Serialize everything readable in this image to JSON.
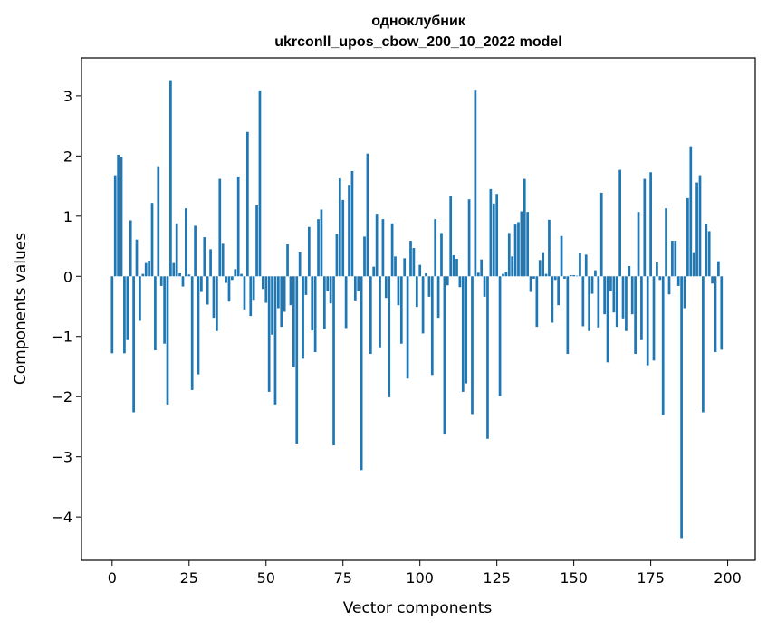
{
  "chart_data": {
    "type": "bar",
    "title_line1": "одноклубник",
    "title_line2": "ukrconll_upos_cbow_200_10_2022 model",
    "xlabel": "Vector components",
    "ylabel": "Components values",
    "xlim": [
      -9.95,
      208.95
    ],
    "ylim": [
      -4.72,
      3.63
    ],
    "xticks": [
      0,
      25,
      50,
      75,
      100,
      125,
      150,
      175,
      200
    ],
    "yticks": [
      -4,
      -3,
      -2,
      -1,
      0,
      1,
      2,
      3
    ],
    "ytick_labels": [
      "−4",
      "−3",
      "−2",
      "−1",
      "0",
      "1",
      "2",
      "3"
    ],
    "bar_color": "#1f77b4",
    "values": [
      -1.28,
      1.68,
      2.02,
      1.98,
      -1.28,
      -1.06,
      0.93,
      -2.26,
      0.61,
      -0.74,
      0.04,
      0.22,
      0.26,
      1.22,
      -1.23,
      1.83,
      -0.16,
      -1.12,
      -2.13,
      3.26,
      0.22,
      0.88,
      0.05,
      -0.17,
      1.13,
      0.03,
      -1.89,
      0.84,
      -1.63,
      -0.26,
      0.65,
      -0.47,
      0.45,
      -0.69,
      -0.91,
      1.62,
      0.54,
      -0.11,
      -0.42,
      -0.06,
      0.12,
      1.66,
      0.04,
      -0.55,
      2.4,
      -0.66,
      -0.39,
      1.18,
      3.09,
      -0.21,
      -0.44,
      -1.92,
      -0.97,
      -2.13,
      -0.53,
      -0.84,
      -0.59,
      0.53,
      -0.48,
      -1.51,
      -2.78,
      0.41,
      -1.37,
      -0.31,
      0.82,
      -0.9,
      -1.26,
      0.95,
      1.11,
      -0.88,
      -0.25,
      -0.45,
      -2.81,
      0.71,
      1.63,
      1.27,
      -0.86,
      1.52,
      1.75,
      -0.4,
      -0.25,
      -3.22,
      0.66,
      2.04,
      -1.29,
      0.16,
      1.04,
      -1.18,
      0.95,
      -0.36,
      -2.01,
      0.88,
      0.33,
      -0.48,
      -1.12,
      0.3,
      -1.7,
      0.59,
      0.47,
      -0.51,
      0.19,
      -0.95,
      0.05,
      -0.34,
      -1.64,
      0.95,
      -0.69,
      0.72,
      -2.63,
      -0.15,
      1.34,
      0.35,
      0.29,
      -0.18,
      -1.92,
      -1.78,
      1.28,
      -2.29,
      3.1,
      0.06,
      0.28,
      -0.34,
      -2.7,
      1.45,
      1.21,
      1.37,
      -1.99,
      0.04,
      0.07,
      0.72,
      0.33,
      0.86,
      0.9,
      1.08,
      1.62,
      1.07,
      -0.26,
      -0.04,
      -0.84,
      0.27,
      0.4,
      0.04,
      0.94,
      -0.77,
      -0.06,
      -0.48,
      0.67,
      -0.04,
      -1.29,
      0.02,
      0.02,
      0.01,
      0.38,
      -0.83,
      0.36,
      -0.91,
      -0.29,
      0.1,
      -0.85,
      1.39,
      -0.63,
      -1.43,
      -0.25,
      -0.6,
      -0.84,
      1.77,
      -0.7,
      -0.91,
      0.17,
      -0.63,
      -1.29,
      1.07,
      -1.06,
      1.62,
      -1.48,
      1.73,
      -1.4,
      0.23,
      -0.06,
      -2.31,
      1.13,
      -0.3,
      0.59,
      0.59,
      -0.16,
      -4.35,
      -0.53,
      1.3,
      2.16,
      0.4,
      1.56,
      1.68,
      -2.26,
      0.87,
      0.75,
      -0.12,
      -1.26,
      0.25,
      -1.22
    ]
  }
}
